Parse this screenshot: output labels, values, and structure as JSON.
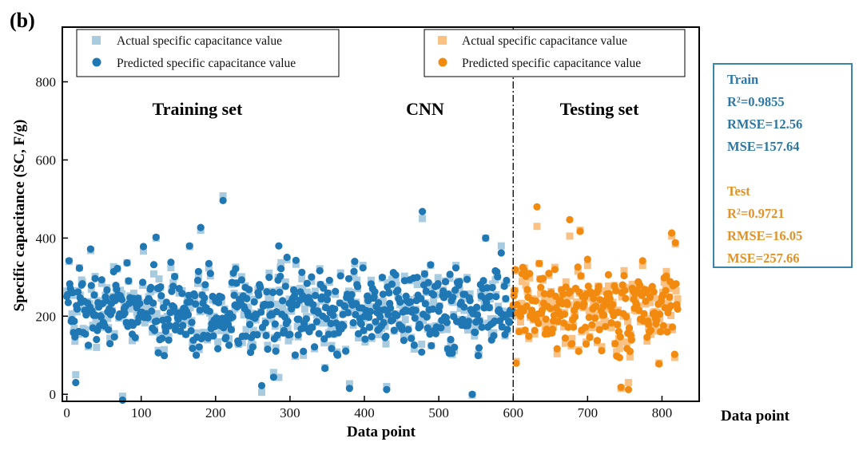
{
  "panel_label": "(b)",
  "colors": {
    "train_actual": "#a9cbe0",
    "train_predicted": "#1f77b4",
    "test_actual": "#f9c184",
    "test_predicted": "#f28a10",
    "divider": "#000000",
    "metrics_border": "#3b86a8",
    "train_metric_text": "#2f77a3",
    "test_metric_text": "#e0922a"
  },
  "metrics": {
    "train": {
      "title": "Train",
      "r2": "R²=0.9855",
      "rmse": "RMSE=12.56",
      "mse": "MSE=157.64"
    },
    "test": {
      "title": "Test",
      "r2": "R²=0.9721",
      "rmse": "RMSE=16.05",
      "mse": "MSE=257.66"
    }
  },
  "chart_data": {
    "type": "scatter",
    "title": "",
    "xlabel": "Data point",
    "xlabel_secondary": "Data point",
    "ylabel": "Specific capacitance (SC, F/g)",
    "xlim": [
      -6,
      850
    ],
    "ylim": [
      -18,
      940
    ],
    "xticks": [
      0,
      100,
      200,
      300,
      400,
      500,
      600,
      700,
      800
    ],
    "yticks": [
      0,
      200,
      400,
      600,
      800
    ],
    "grid": false,
    "train_count": 600,
    "test_count": 222,
    "split_at": 600,
    "point_count": 822,
    "y_typical_range": [
      0,
      510
    ],
    "region_labels": {
      "train": "Training set",
      "model": "CNN",
      "test": "Testing set"
    },
    "legends": [
      {
        "position": "top-left",
        "entries": [
          {
            "label": "Actual specific capacitance value",
            "marker": "square",
            "series": "train_actual"
          },
          {
            "label": "Predicted specific capacitance value",
            "marker": "circle",
            "series": "train_predicted"
          }
        ]
      },
      {
        "position": "top-right",
        "entries": [
          {
            "label": "Actual specific capacitance value",
            "marker": "square",
            "series": "test_actual"
          },
          {
            "label": "Predicted specific capacitance value",
            "marker": "circle",
            "series": "test_predicted"
          }
        ]
      }
    ],
    "notable_points": [
      {
        "x": 3,
        "actual": 340,
        "predicted": 342
      },
      {
        "x": 12,
        "actual": 50,
        "predicted": 30
      },
      {
        "x": 32,
        "actual": 368,
        "predicted": 372
      },
      {
        "x": 75,
        "actual": -5,
        "predicted": -15
      },
      {
        "x": 120,
        "actual": 400,
        "predicted": 402
      },
      {
        "x": 165,
        "actual": 378,
        "predicted": 380
      },
      {
        "x": 180,
        "actual": 420,
        "predicted": 427
      },
      {
        "x": 210,
        "actual": 508,
        "predicted": 496
      },
      {
        "x": 262,
        "actual": 5,
        "predicted": 22
      },
      {
        "x": 285,
        "actual": 43,
        "predicted": 380
      },
      {
        "x": 380,
        "actual": 27,
        "predicted": 15
      },
      {
        "x": 430,
        "actual": 20,
        "predicted": 12
      },
      {
        "x": 478,
        "actual": 450,
        "predicted": 468
      },
      {
        "x": 545,
        "actual": -2,
        "predicted": 0
      },
      {
        "x": 563,
        "actual": 400,
        "predicted": 400
      },
      {
        "x": 584,
        "actual": 380,
        "predicted": 362
      },
      {
        "x": 632,
        "actual": 430,
        "predicted": 480
      },
      {
        "x": 676,
        "actual": 405,
        "predicted": 447
      },
      {
        "x": 690,
        "actual": 420,
        "predicted": 417
      },
      {
        "x": 745,
        "actual": 15,
        "predicted": 18
      },
      {
        "x": 755,
        "actual": 30,
        "predicted": 12
      },
      {
        "x": 813,
        "actual": 405,
        "predicted": 413
      },
      {
        "x": 818,
        "actual": 385,
        "predicted": 388
      }
    ]
  }
}
